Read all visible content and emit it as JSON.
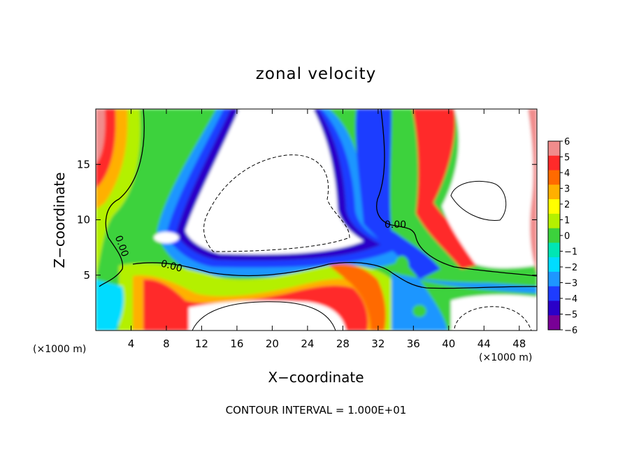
{
  "chart_data": {
    "type": "heatmap",
    "title": "zonal velocity",
    "xlabel": "X−coordinate",
    "ylabel": "Z−coordinate",
    "x_unit_left": "(×1000 m)",
    "x_unit_right": "(×1000 m)",
    "footer": "CONTOUR INTERVAL = 1.000E+01",
    "xlim": [
      0,
      50
    ],
    "ylim": [
      0,
      20
    ],
    "x_ticks": [
      4,
      8,
      12,
      16,
      20,
      24,
      28,
      32,
      36,
      40,
      44,
      48
    ],
    "y_ticks": [
      5,
      10,
      15
    ],
    "contour_labels": [
      "0.00",
      "0.00",
      "0.00"
    ],
    "colorbar": {
      "min": -6,
      "max": 6,
      "tick_values": [
        6,
        5,
        4,
        3,
        2,
        1,
        0,
        -1,
        -2,
        -3,
        -4,
        -5,
        -6
      ],
      "tick_labels": [
        "6",
        "5",
        "4",
        "3",
        "2",
        "1",
        "0",
        "−1",
        "−2",
        "−3",
        "−4",
        "−5",
        "−6"
      ],
      "colors": [
        "#f08c8c",
        "#ff2a2a",
        "#ff6a00",
        "#ffb000",
        "#ffff00",
        "#b4f000",
        "#3cd23c",
        "#00e6b4",
        "#00dcff",
        "#1e96ff",
        "#1e3cff",
        "#2a00c8",
        "#780096"
      ]
    }
  }
}
